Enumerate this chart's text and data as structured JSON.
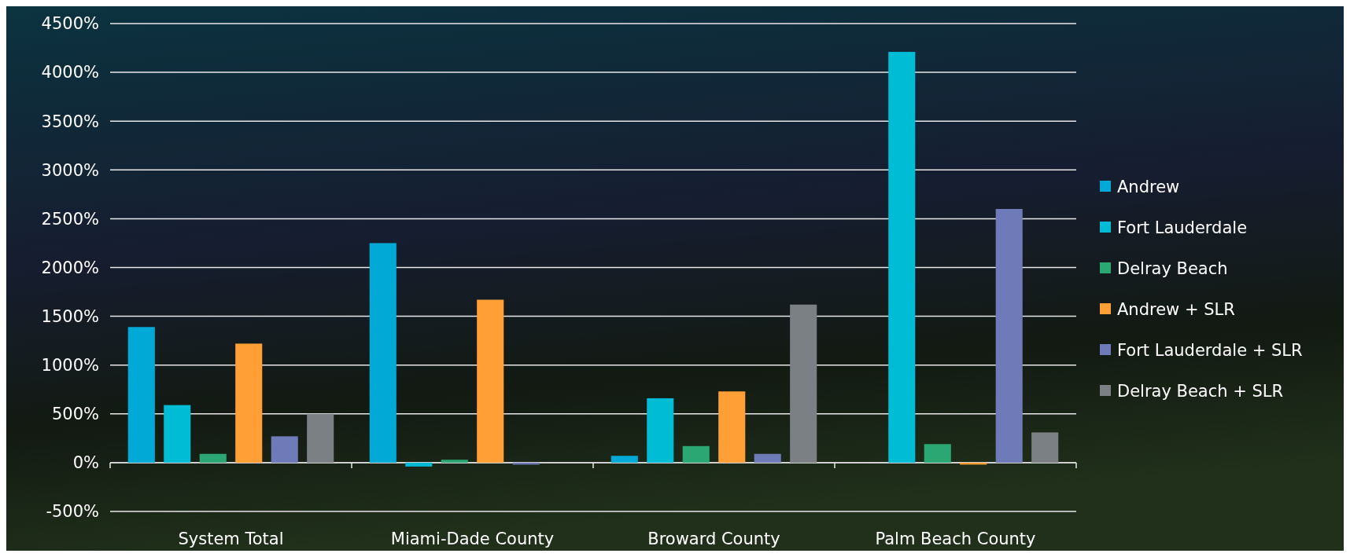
{
  "chart_data": {
    "type": "bar",
    "categories": [
      "System Total",
      "Miami-Dade County",
      "Broward County",
      "Palm Beach County"
    ],
    "series": [
      {
        "name": "Andrew",
        "color": "#00a9d6",
        "values": [
          1390,
          2250,
          70,
          null
        ]
      },
      {
        "name": "Fort Lauderdale",
        "color": "#00bcd4",
        "values": [
          590,
          -40,
          660,
          4210
        ]
      },
      {
        "name": "Delray Beach",
        "color": "#2aa772",
        "values": [
          90,
          30,
          170,
          190
        ]
      },
      {
        "name": "Andrew + SLR",
        "color": "#ff9f36",
        "values": [
          1220,
          1670,
          730,
          -20
        ]
      },
      {
        "name": "Fort Lauderdale + SLR",
        "color": "#6e7bb8",
        "values": [
          270,
          -20,
          90,
          2600
        ]
      },
      {
        "name": "Delray Beach + SLR",
        "color": "#7a8084",
        "values": [
          500,
          0,
          1620,
          310
        ]
      }
    ],
    "ylim": [
      -500,
      4500
    ],
    "yticks": [
      {
        "value": -500,
        "label": "-500%"
      },
      {
        "value": 0,
        "label": "0%"
      },
      {
        "value": 500,
        "label": "500%"
      },
      {
        "value": 1000,
        "label": "1000%"
      },
      {
        "value": 1500,
        "label": "1500%"
      },
      {
        "value": 2000,
        "label": "2000%"
      },
      {
        "value": 2500,
        "label": "2500%"
      },
      {
        "value": 3000,
        "label": "3000%"
      },
      {
        "value": 3500,
        "label": "3500%"
      },
      {
        "value": 4000,
        "label": "4000%"
      },
      {
        "value": 4500,
        "label": "4500%"
      }
    ],
    "grid": "y",
    "legend": "right"
  }
}
